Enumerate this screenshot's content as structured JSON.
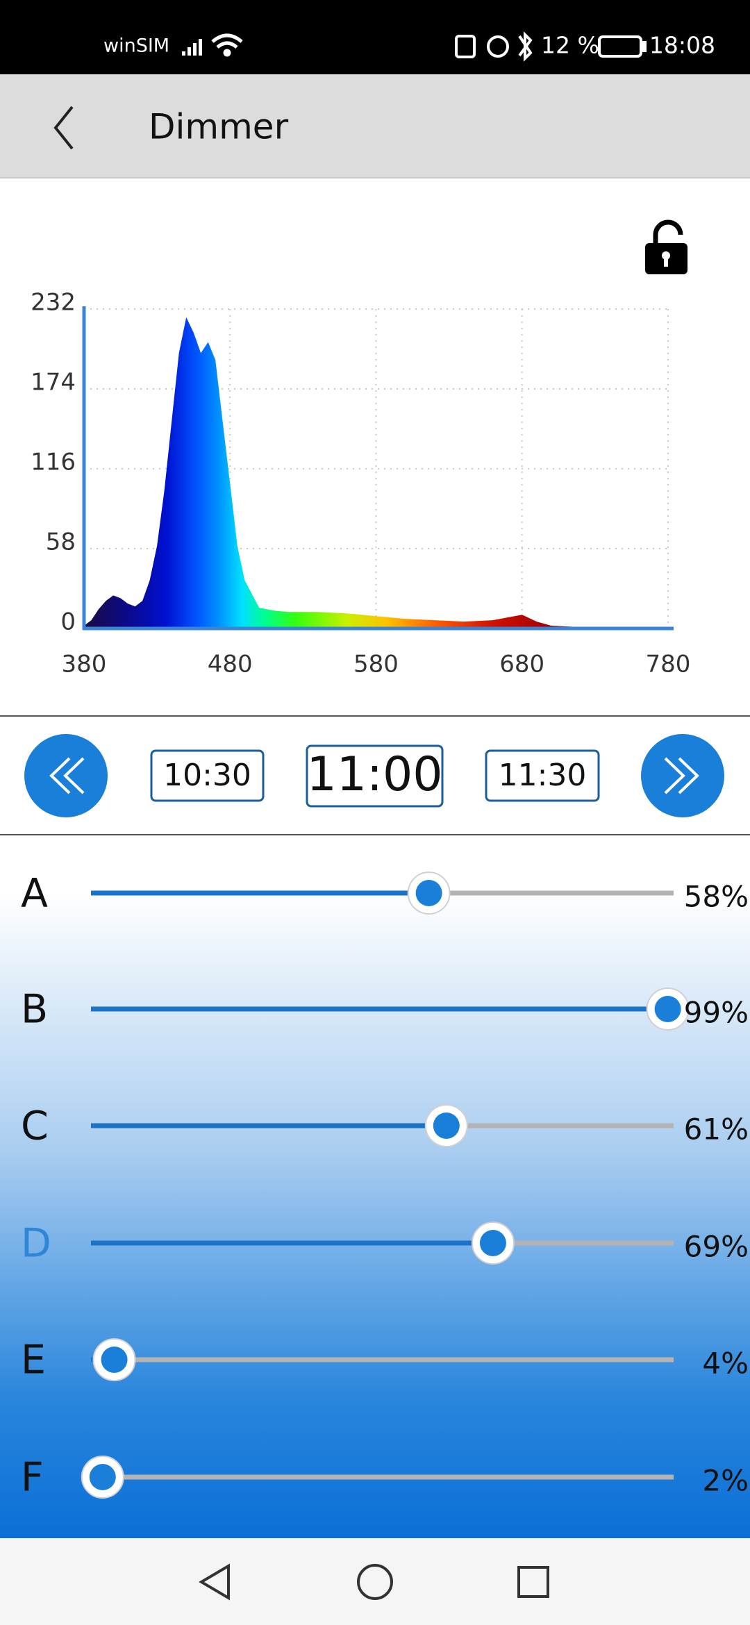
{
  "status_bar": {
    "carrier": "winSIM",
    "battery": "12 %",
    "time": "18:08"
  },
  "header": {
    "title": "Dimmer"
  },
  "chart_data": {
    "type": "area",
    "x": [
      380,
      385,
      390,
      395,
      400,
      405,
      410,
      415,
      420,
      425,
      430,
      435,
      440,
      445,
      450,
      455,
      460,
      465,
      470,
      475,
      480,
      485,
      490,
      500,
      510,
      520,
      540,
      560,
      580,
      600,
      620,
      640,
      660,
      670,
      680,
      690,
      700,
      720,
      740,
      780
    ],
    "values": [
      2,
      6,
      14,
      20,
      24,
      22,
      18,
      16,
      20,
      35,
      60,
      100,
      150,
      200,
      226,
      215,
      200,
      208,
      195,
      150,
      105,
      60,
      35,
      15,
      13,
      12,
      12,
      11,
      9,
      7,
      6,
      5,
      6,
      8,
      10,
      5,
      2,
      1,
      0,
      0
    ],
    "xlim": [
      380,
      780
    ],
    "ylim": [
      0,
      232
    ],
    "xticks": [
      380,
      480,
      580,
      680,
      780
    ],
    "yticks": [
      0,
      58,
      116,
      174,
      232
    ],
    "grid": true
  },
  "time_selector": {
    "times": [
      "10:30",
      "11:00",
      "11:30"
    ],
    "current_index": 1
  },
  "sliders": {
    "range": [
      0,
      100
    ],
    "selected_index": 3,
    "channels": [
      {
        "label": "A",
        "value": 58,
        "value_label": "58%"
      },
      {
        "label": "B",
        "value": 99,
        "value_label": "99%"
      },
      {
        "label": "C",
        "value": 61,
        "value_label": "61%"
      },
      {
        "label": "D",
        "value": 69,
        "value_label": "69%"
      },
      {
        "label": "E",
        "value": 4,
        "value_label": "4%"
      },
      {
        "label": "F",
        "value": 2,
        "value_label": "2%"
      }
    ]
  }
}
